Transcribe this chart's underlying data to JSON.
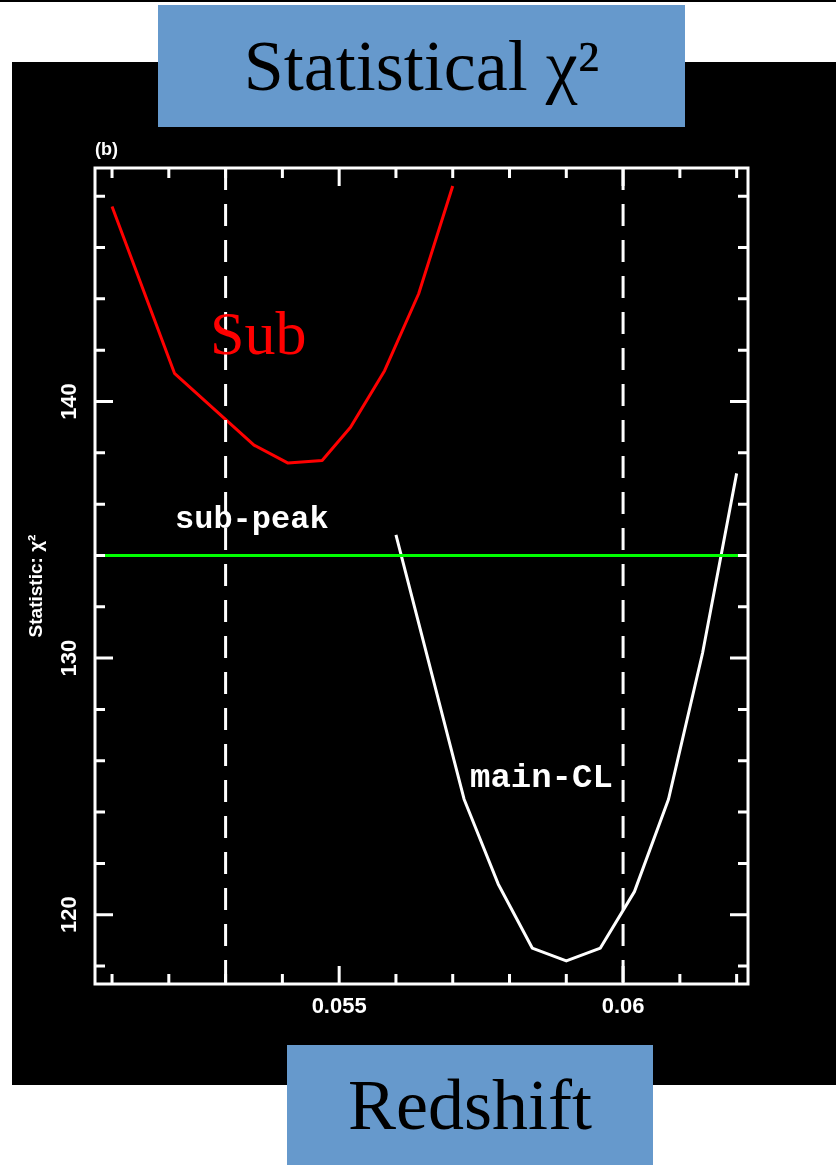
{
  "chart_data": {
    "type": "line",
    "title": "Statistical χ²",
    "xlabel": "Redshift",
    "ylabel": "Statistic: χ²",
    "annotations": [
      "(b)",
      "sub-peak"
    ],
    "series": [
      {
        "name": "Sub",
        "color": "#ff0000",
        "x": [
          0.051,
          0.0521,
          0.0535,
          0.0541,
          0.0547,
          0.0552,
          0.0558,
          0.0564,
          0.057
        ],
        "values": [
          147.6,
          141.1,
          138.3,
          137.6,
          137.7,
          139.0,
          141.2,
          144.2,
          148.4
        ]
      },
      {
        "name": "main-CL",
        "color": "#ffffff",
        "x": [
          0.056,
          0.0572,
          0.0578,
          0.0584,
          0.059,
          0.0596,
          0.0602,
          0.0608,
          0.0614,
          0.062
        ],
        "values": [
          134.8,
          124.5,
          121.2,
          118.7,
          118.2,
          118.7,
          120.9,
          124.5,
          130.2,
          137.2
        ]
      }
    ],
    "xlim": [
      0.0507,
      0.0622
    ],
    "ylim": [
      117.3,
      149.1
    ],
    "xticks": [
      {
        "value": 0.051,
        "label": null
      },
      {
        "value": 0.052,
        "label": null
      },
      {
        "value": 0.053,
        "label": null
      },
      {
        "value": 0.054,
        "label": null
      },
      0.055,
      {
        "value": 0.056,
        "label": null
      },
      {
        "value": 0.057,
        "label": null
      },
      {
        "value": 0.058,
        "label": null
      },
      {
        "value": 0.059,
        "label": null
      },
      0.06,
      {
        "value": 0.061,
        "label": null
      },
      {
        "value": 0.062,
        "label": null
      }
    ],
    "yticks": [
      {
        "value": 118,
        "label": null
      },
      120,
      {
        "value": 122,
        "label": null
      },
      {
        "value": 124,
        "label": null
      },
      {
        "value": 126,
        "label": null
      },
      {
        "value": 128,
        "label": null
      },
      130,
      {
        "value": 132,
        "label": null
      },
      {
        "value": 134,
        "label": null
      },
      {
        "value": 136,
        "label": null
      },
      {
        "value": 138,
        "label": null
      },
      140,
      {
        "value": 142,
        "label": null
      },
      {
        "value": 144,
        "label": null
      },
      {
        "value": 146,
        "label": null
      },
      {
        "value": 148,
        "label": null
      }
    ],
    "ref_lines": [
      {
        "axis": "x",
        "value": 0.053,
        "color": "#ffffff",
        "line_style": "dashed"
      },
      {
        "axis": "x",
        "value": 0.06,
        "color": "#ffffff",
        "line_style": "dashed"
      },
      {
        "axis": "y",
        "value": 134,
        "color": "#00ff00",
        "line_style": "solid"
      }
    ],
    "grid": false,
    "legend": false,
    "marker": "none",
    "line_style": "solid"
  }
}
